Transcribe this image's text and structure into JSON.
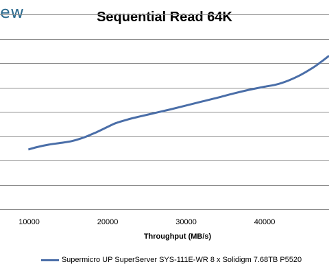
{
  "logo": {
    "text": "ew"
  },
  "chart_data": {
    "type": "line",
    "title": "Sequential Read 64K",
    "xlabel": "Throughput (MB/s)",
    "ylabel": "",
    "xlim": [
      0,
      48200
    ],
    "ylim": [
      0,
      8
    ],
    "x_ticks": [
      10000,
      20000,
      30000,
      40000
    ],
    "x_tick_labels": [
      "10000",
      "20000",
      "30000",
      "40000"
    ],
    "y_gridlines": [
      1,
      2,
      3,
      4,
      5,
      6,
      7,
      8
    ],
    "grid": true,
    "legend": "bottom",
    "series": [
      {
        "name": "Supermicro UP SuperServer SYS-111E-WR 8 x Solidigm 7.68TB P5520",
        "color": "#4a6ea8",
        "points": [
          [
            9900,
            2.45
          ],
          [
            11000,
            2.55
          ],
          [
            12500,
            2.65
          ],
          [
            14000,
            2.72
          ],
          [
            15500,
            2.8
          ],
          [
            17000,
            2.95
          ],
          [
            18500,
            3.15
          ],
          [
            20000,
            3.38
          ],
          [
            21000,
            3.53
          ],
          [
            22500,
            3.68
          ],
          [
            24000,
            3.8
          ],
          [
            26000,
            3.95
          ],
          [
            28000,
            4.1
          ],
          [
            30000,
            4.26
          ],
          [
            32000,
            4.42
          ],
          [
            34000,
            4.58
          ],
          [
            36000,
            4.75
          ],
          [
            38000,
            4.9
          ],
          [
            40000,
            5.03
          ],
          [
            41500,
            5.12
          ],
          [
            43000,
            5.28
          ],
          [
            44500,
            5.5
          ],
          [
            46000,
            5.78
          ],
          [
            47200,
            6.05
          ],
          [
            48200,
            6.3
          ]
        ]
      }
    ]
  }
}
